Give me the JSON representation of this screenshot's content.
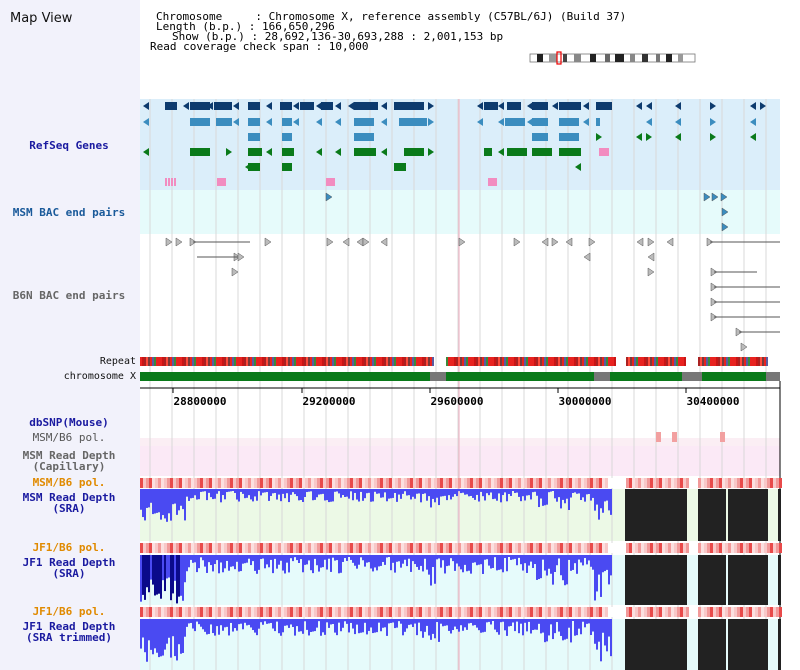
{
  "view": {
    "title": "Map View",
    "chromosome_line": "Chromosome     : Chromosome X, reference assembly (C57BL/6J) (Build 37)",
    "length_line": "Length (b.p.) : 166,650,296",
    "show_line": "Show (b.p.) : 28,692,136-30,693,288 : 2,001,153 bp",
    "coverage_line": "Read coverage check span : 10,000"
  },
  "tracks": {
    "refseq": "RefSeq Genes",
    "msm_bac": "MSM BAC end pairs",
    "b6n_bac": "B6N BAC end pairs",
    "repeat": "Repeat",
    "chromosome": "chromosome X",
    "dbsnp": "dbSNP(Mouse)",
    "msm_pol": "MSM/B6 pol.",
    "msm_cap": "MSM Read Depth\n(Capillary)",
    "msm_pol2": "MSM/B6 pol.",
    "msm_sra": "MSM Read Depth\n(SRA)",
    "jf1_pol": "JF1/B6 pol.",
    "jf1_sra": "JF1 Read Depth\n(SRA)",
    "jf1_pol2": "JF1/B6 pol.",
    "jf1_trim": "JF1 Read Depth\n(SRA trimmed)"
  },
  "axis": {
    "t1": "28800000",
    "t2": "29200000",
    "t3": "29600000",
    "t4": "30000000",
    "t5": "30400000"
  },
  "colors": {
    "refseq_bg": "#dbeefa",
    "bac_bg": "#e6fbfb",
    "gene_dark": "#0d3b6e",
    "gene_mid": "#3b8dbf",
    "gene_green": "#0a7a1a",
    "repeat_red": "#e8221f",
    "chromosome_green": "#0a7a1a",
    "depth_blue": "#3b3bf0",
    "pol_red": "#e84a4a",
    "label_blue": "#1a1aa0",
    "label_orange": "#e08a00"
  }
}
